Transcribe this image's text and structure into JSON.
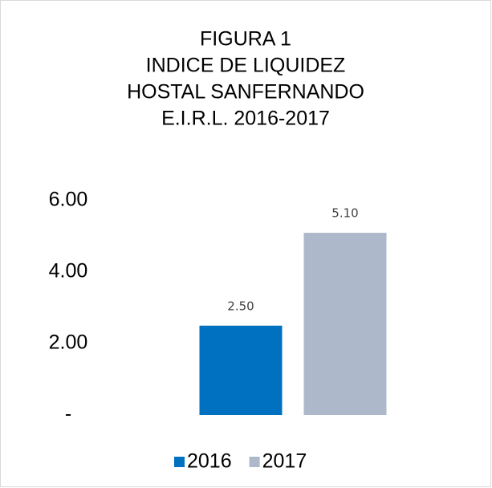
{
  "chart_data": {
    "type": "bar",
    "title": [
      "FIGURA  1",
      "INDICE DE LIQUIDEZ",
      "HOSTAL SANFERNANDO",
      "E.I.R.L. 2016-2017"
    ],
    "categories": [
      null
    ],
    "series": [
      {
        "name": "2016",
        "color": "#0070c0",
        "values": [
          2.5
        ],
        "value_labels": [
          "2.50"
        ]
      },
      {
        "name": "2017",
        "color": "#adb9ca",
        "values": [
          5.1
        ],
        "value_labels": [
          "5.10"
        ]
      }
    ],
    "ylim": [
      0,
      6
    ],
    "yticks": [
      {
        "value": 0,
        "label": "-"
      },
      {
        "value": 2,
        "label": "2.00"
      },
      {
        "value": 4,
        "label": "4.00"
      },
      {
        "value": 6,
        "label": "6.00"
      }
    ],
    "grid": false,
    "legend": "bottom"
  }
}
